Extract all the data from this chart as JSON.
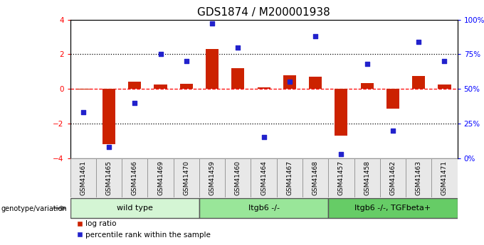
{
  "title": "GDS1874 / M200001938",
  "samples": [
    "GSM41461",
    "GSM41465",
    "GSM41466",
    "GSM41469",
    "GSM41470",
    "GSM41459",
    "GSM41460",
    "GSM41464",
    "GSM41467",
    "GSM41468",
    "GSM41457",
    "GSM41458",
    "GSM41462",
    "GSM41463",
    "GSM41471"
  ],
  "log_ratio": [
    -0.05,
    -3.2,
    0.4,
    0.25,
    0.3,
    2.3,
    1.2,
    0.07,
    0.8,
    0.7,
    -2.7,
    0.35,
    -1.15,
    0.75,
    0.25
  ],
  "percentile_rank": [
    33,
    8,
    40,
    75,
    70,
    97,
    80,
    15,
    55,
    88,
    3,
    68,
    20,
    84,
    70
  ],
  "groups": [
    {
      "label": "wild type",
      "start": 0,
      "end": 5,
      "color": "#d4f5d4"
    },
    {
      "label": "Itgb6 -/-",
      "start": 5,
      "end": 10,
      "color": "#99e699"
    },
    {
      "label": "Itgb6 -/-, TGFbeta+",
      "start": 10,
      "end": 15,
      "color": "#66cc66"
    }
  ],
  "ylim_left": [
    -4,
    4
  ],
  "ylim_right": [
    0,
    100
  ],
  "yticks_left": [
    -4,
    -2,
    0,
    2,
    4
  ],
  "yticks_right": [
    0,
    25,
    50,
    75,
    100
  ],
  "yticklabels_right": [
    "0%",
    "25%",
    "50%",
    "75%",
    "100%"
  ],
  "bar_color": "#cc2200",
  "dot_color": "#2222cc",
  "legend_bar_label": "log ratio",
  "legend_dot_label": "percentile rank within the sample",
  "genotype_label": "genotype/variation",
  "title_fontsize": 11,
  "tick_fontsize": 7.5,
  "label_fontsize": 6.5,
  "group_fontsize": 8
}
